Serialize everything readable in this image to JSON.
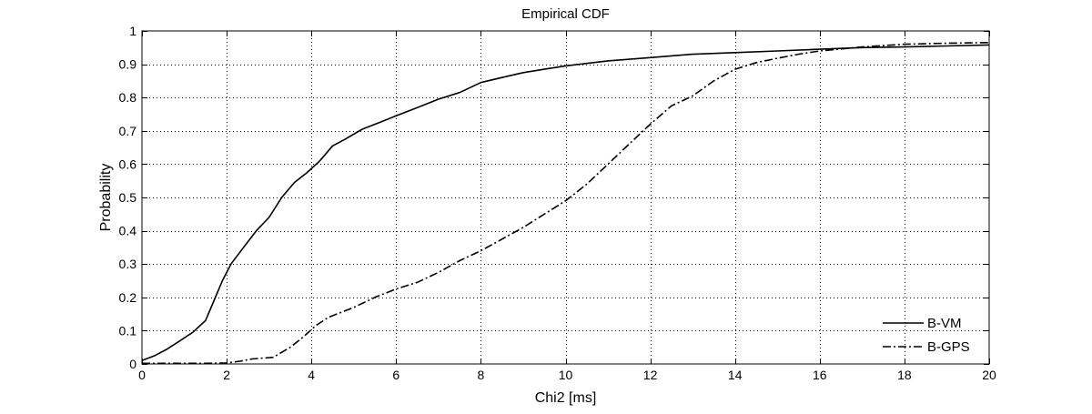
{
  "chart_data": {
    "type": "line",
    "title": "Empirical CDF",
    "xlabel": "Chi2 [ms]",
    "ylabel": "Probability",
    "xlim": [
      0,
      20
    ],
    "ylim": [
      0,
      1
    ],
    "x_ticks": [
      0,
      2,
      4,
      6,
      8,
      10,
      12,
      14,
      16,
      18,
      20
    ],
    "y_ticks": [
      0,
      0.1,
      0.2,
      0.3,
      0.4,
      0.5,
      0.6,
      0.7,
      0.8,
      0.9,
      1
    ],
    "grid": true,
    "legend_position": "bottom-right",
    "series": [
      {
        "name": "B-VM",
        "line_style": "solid",
        "color": "#000000",
        "x": [
          0,
          0.3,
          0.6,
          0.9,
          1.2,
          1.5,
          1.7,
          1.9,
          2.1,
          2.4,
          2.7,
          3.0,
          3.3,
          3.6,
          3.9,
          4.2,
          4.5,
          4.8,
          5.2,
          5.6,
          6.0,
          6.5,
          7.0,
          7.5,
          8.0,
          8.5,
          9.0,
          9.5,
          10.0,
          11.0,
          12.0,
          13.0,
          14.0,
          15.0,
          16.0,
          17.0,
          18.0,
          19.0,
          20.0
        ],
        "y": [
          0.01,
          0.025,
          0.045,
          0.07,
          0.095,
          0.13,
          0.19,
          0.25,
          0.3,
          0.35,
          0.4,
          0.44,
          0.5,
          0.545,
          0.575,
          0.61,
          0.655,
          0.675,
          0.705,
          0.725,
          0.745,
          0.77,
          0.795,
          0.815,
          0.845,
          0.86,
          0.875,
          0.885,
          0.895,
          0.91,
          0.92,
          0.93,
          0.935,
          0.94,
          0.945,
          0.95,
          0.952,
          0.955,
          0.958
        ]
      },
      {
        "name": "B-GPS",
        "line_style": "dash-dot",
        "color": "#000000",
        "x": [
          0,
          0.5,
          1.0,
          1.5,
          2.0,
          2.3,
          2.6,
          3.1,
          3.5,
          3.8,
          4.1,
          4.4,
          5.0,
          5.5,
          6.0,
          6.5,
          7.0,
          7.5,
          8.0,
          8.5,
          9.0,
          9.5,
          10.0,
          10.5,
          11.0,
          11.5,
          12.0,
          12.5,
          13.0,
          13.5,
          14.0,
          14.5,
          15.0,
          15.5,
          16.0,
          17.0,
          18.0,
          19.0,
          20.0
        ],
        "y": [
          0.002,
          0.002,
          0.002,
          0.002,
          0.003,
          0.008,
          0.015,
          0.02,
          0.05,
          0.08,
          0.115,
          0.14,
          0.17,
          0.2,
          0.225,
          0.245,
          0.275,
          0.31,
          0.34,
          0.375,
          0.41,
          0.45,
          0.49,
          0.54,
          0.6,
          0.66,
          0.72,
          0.775,
          0.805,
          0.85,
          0.885,
          0.905,
          0.918,
          0.93,
          0.94,
          0.952,
          0.96,
          0.963,
          0.965
        ]
      }
    ]
  }
}
